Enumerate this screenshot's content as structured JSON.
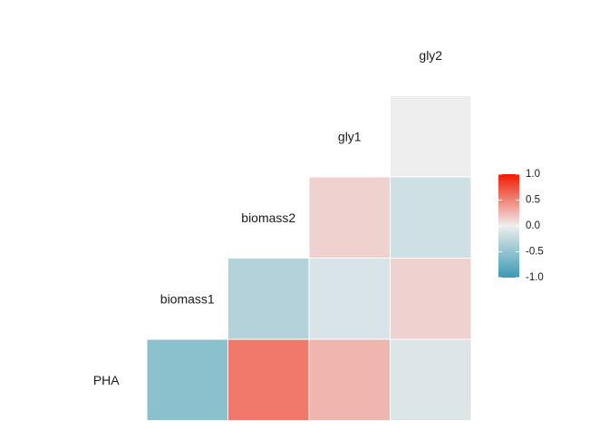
{
  "chart_data": {
    "type": "heatmap",
    "title": "",
    "variables": [
      "PHA",
      "biomass1",
      "biomass2",
      "gly1",
      "gly2"
    ],
    "cells": [
      {
        "row": "PHA",
        "col": "PHA",
        "value": -0.55
      },
      {
        "row": "PHA",
        "col": "biomass1",
        "value": 0.55
      },
      {
        "row": "PHA",
        "col": "biomass2",
        "value": 0.27
      },
      {
        "row": "PHA",
        "col": "gly1",
        "value": -0.1
      },
      {
        "row": "biomass1",
        "col": "biomass1",
        "value": -0.33
      },
      {
        "row": "biomass1",
        "col": "biomass2",
        "value": -0.12
      },
      {
        "row": "biomass1",
        "col": "gly1",
        "value": 0.13
      },
      {
        "row": "biomass2",
        "col": "biomass2",
        "value": 0.13
      },
      {
        "row": "biomass2",
        "col": "gly1",
        "value": -0.17
      },
      {
        "row": "gly1",
        "col": "gly1",
        "value": 0.0
      }
    ],
    "colors": {
      "low": "#3A9AB2",
      "mid": "#EEEEEE",
      "high": "#F21A00"
    },
    "legend": {
      "placement": "right",
      "range": [
        -1,
        1
      ],
      "ticks": [
        "1.0",
        "0.5",
        "0.0",
        "-0.5",
        "-1.0"
      ],
      "tick_values": [
        1,
        0.5,
        0,
        -0.5,
        -1
      ]
    }
  }
}
